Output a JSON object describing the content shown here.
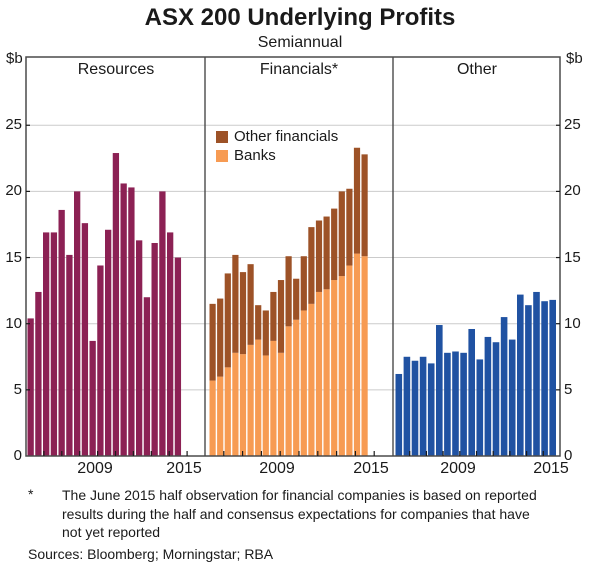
{
  "title": "ASX 200 Underlying Profits",
  "subtitle": "Semiannual",
  "axis": {
    "unit_left": "$b",
    "unit_right": "$b",
    "tick_values": [
      0,
      5,
      10,
      15,
      20,
      25
    ],
    "x_year_labels": [
      "2009",
      "2015"
    ]
  },
  "legend": [
    {
      "label": "Other financials",
      "color": "#9D5227"
    },
    {
      "label": "Banks",
      "color": "#F79B53"
    }
  ],
  "footnote_marker": "*",
  "footnote": "The June 2015 half observation for financial companies is based on reported results during the half and consensus expectations for companies that have not yet reported",
  "sources": "Sources:  Bloomberg; Morningstar; RBA",
  "colors": {
    "resources": "#8C2154",
    "banks": "#F79B53",
    "other_financials": "#9D5227",
    "other": "#2052A2",
    "grid": "#CBCBCB",
    "frame": "#4A4A4A"
  },
  "chart_data": {
    "type": "bar",
    "frequency": "semiannual",
    "ylabel": "$b",
    "ylim": [
      0,
      27.5
    ],
    "gridlines": [
      5,
      10,
      15,
      20,
      25
    ],
    "panels": [
      {
        "name": "Resources",
        "series": [
          {
            "name": "Resources",
            "color": "#8C2154",
            "x_start": "2005 H1",
            "x_end": "2014 H2",
            "values": [
              10.4,
              12.4,
              16.9,
              16.9,
              18.6,
              15.2,
              20.0,
              17.6,
              8.7,
              14.4,
              17.1,
              22.9,
              20.6,
              20.3,
              16.3,
              12.0,
              16.1,
              20.0,
              16.9,
              15.0
            ]
          }
        ],
        "x_labels": [
          "2009",
          "2015"
        ]
      },
      {
        "name": "Financials*",
        "stacked": true,
        "series": [
          {
            "name": "Banks",
            "color": "#F79B53",
            "x_start": "2005 H1",
            "x_end": "2015 H1",
            "values": [
              5.7,
              6.0,
              6.7,
              7.8,
              7.7,
              8.4,
              8.8,
              7.6,
              8.7,
              7.8,
              9.8,
              10.3,
              11.0,
              11.5,
              12.4,
              12.6,
              13.3,
              13.6,
              14.4,
              15.3,
              15.1
            ]
          },
          {
            "name": "Other financials",
            "color": "#9D5227",
            "x_start": "2005 H1",
            "x_end": "2015 H1",
            "values": [
              5.8,
              5.9,
              7.1,
              7.4,
              6.2,
              6.1,
              2.6,
              3.4,
              3.7,
              5.5,
              5.3,
              3.1,
              4.1,
              5.8,
              5.4,
              5.5,
              5.4,
              6.4,
              5.8,
              8.0,
              7.7
            ]
          }
        ],
        "totals": [
          11.5,
          11.9,
          13.8,
          15.2,
          13.9,
          14.5,
          11.4,
          11.0,
          12.4,
          13.3,
          15.1,
          13.4,
          15.1,
          17.3,
          17.8,
          18.1,
          18.7,
          20.0,
          20.2,
          23.3,
          22.8
        ],
        "x_labels": [
          "2009",
          "2015"
        ]
      },
      {
        "name": "Other",
        "series": [
          {
            "name": "Other",
            "color": "#2052A2",
            "x_start": "2005 H1",
            "x_end": "2014 H2",
            "values": [
              6.2,
              7.5,
              7.2,
              7.5,
              7.0,
              9.9,
              7.8,
              7.9,
              7.8,
              9.6,
              7.3,
              9.0,
              8.6,
              10.5,
              8.8,
              12.2,
              11.4,
              12.4,
              11.7,
              11.8
            ]
          }
        ],
        "x_labels": [
          "2009",
          "2015"
        ]
      }
    ]
  }
}
